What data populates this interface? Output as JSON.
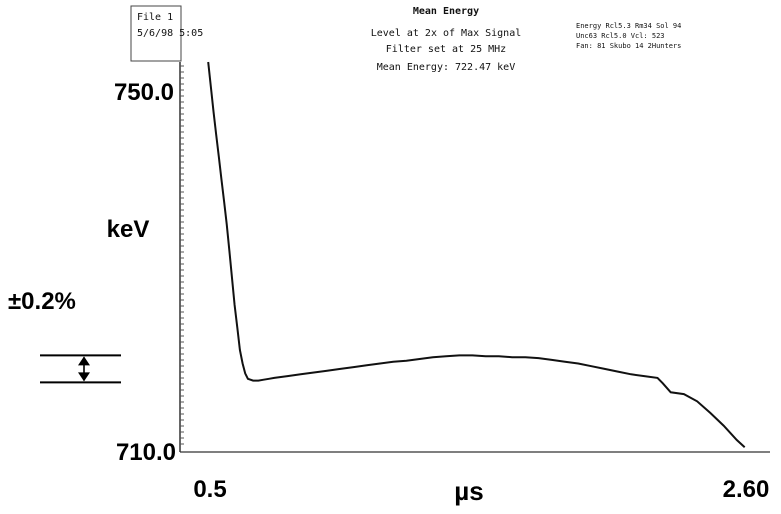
{
  "chart_data": {
    "type": "line",
    "title": "Mean Energy",
    "subtitle_lines": [
      "Level at 2x of Max Signal",
      "Filter set at 25 MHz",
      "Mean Energy: 722.47 keV"
    ],
    "header_left_lines": [
      "File 1",
      "5/6/98 5:05"
    ],
    "header_right_lines": [
      "Energy Rcl5.3 Rm34 Sol 94",
      "Unc63 Rcl5.0 Vcl: 523",
      "Fan: 81 Skubo 14 2Hunters"
    ],
    "ylabel": "keV",
    "xlabel": "µs",
    "ylim": [
      710.0,
      750.0
    ],
    "xlim": [
      0.5,
      2.6
    ],
    "ytick_labels": [
      "750.0",
      "710.0"
    ],
    "xtick_labels": [
      "0.5",
      "2.60"
    ],
    "tolerance_label": "±0.2%",
    "tolerance_band": [
      717.4,
      720.4
    ],
    "series": [
      {
        "x": [
          0.55,
          0.56,
          0.57,
          0.58,
          0.59,
          0.6,
          0.61,
          0.62,
          0.63,
          0.64,
          0.65,
          0.66,
          0.67,
          0.68,
          0.69,
          0.7,
          0.72,
          0.74,
          0.76,
          0.78,
          0.8,
          0.85,
          0.9,
          0.95,
          1.0,
          1.05,
          1.1,
          1.15,
          1.2,
          1.25,
          1.3,
          1.35,
          1.4,
          1.45,
          1.5,
          1.55,
          1.6,
          1.65,
          1.7,
          1.75,
          1.8,
          1.85,
          1.9,
          1.95,
          2.0,
          2.05,
          2.1,
          2.15,
          2.2,
          2.25,
          2.27,
          2.3,
          2.35,
          2.4,
          2.45,
          2.5,
          2.55,
          2.58
        ],
        "y": [
          753.0,
          750.2,
          747.5,
          745.0,
          742.5,
          740.0,
          737.5,
          735.0,
          732.0,
          729.0,
          726.0,
          723.5,
          721.0,
          719.5,
          718.4,
          717.8,
          717.6,
          717.6,
          717.7,
          717.8,
          717.9,
          718.1,
          718.3,
          718.5,
          718.7,
          718.9,
          719.1,
          719.3,
          719.5,
          719.7,
          719.8,
          720.0,
          720.2,
          720.3,
          720.4,
          720.4,
          720.3,
          720.3,
          720.2,
          720.2,
          720.1,
          719.9,
          719.7,
          719.5,
          719.2,
          718.9,
          718.6,
          718.3,
          718.1,
          717.9,
          717.3,
          716.3,
          716.1,
          715.3,
          714.0,
          712.6,
          711.0,
          710.2
        ]
      }
    ]
  }
}
